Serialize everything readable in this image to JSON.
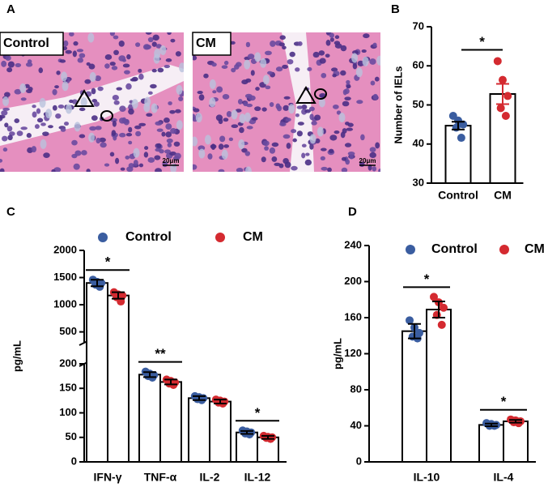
{
  "figure": {
    "panel_labels": [
      "A",
      "B",
      "C",
      "D"
    ],
    "image_labels": [
      "Control",
      "CM"
    ],
    "scale_bars": [
      "20μm",
      "20μm"
    ]
  },
  "chart_data": [
    {
      "type": "bar",
      "y_label": "Number of IELs",
      "categories": [
        "Control",
        "CM"
      ],
      "values": [
        44.7,
        52.8
      ],
      "errors": [
        1.0,
        2.6
      ],
      "colors": [
        "#3a5da0",
        "#d42a30"
      ],
      "error_colors": [
        "#000000",
        "#d42a30"
      ],
      "points": [
        [
          47.2,
          46.0,
          45.0,
          44.2,
          41.6
        ],
        [
          61.2,
          56.4,
          52.3,
          49.2,
          47.2
        ]
      ],
      "ylim": [
        30,
        70
      ],
      "yticks": [
        30,
        40,
        50,
        60,
        70
      ],
      "significance": [
        {
          "categories": [
            0,
            1
          ],
          "label": "*"
        }
      ]
    },
    {
      "type": "bar",
      "y_label": "pg/mL",
      "categories": [
        "IFN-γ",
        "TNF-α",
        "IL-2",
        "IL-12"
      ],
      "series": [
        {
          "name": "Control",
          "color": "#3a5da0",
          "values": [
            1400,
            178,
            130,
            60
          ],
          "errors": [
            60,
            5,
            4,
            3
          ],
          "points": [
            [
              1460,
              1420,
              1400,
              1370,
              1330
            ],
            [
              184,
              180,
              177,
              175,
              172
            ],
            [
              134,
              132,
              130,
              128,
              126
            ],
            [
              64,
              62,
              60,
              58,
              56
            ]
          ]
        },
        {
          "name": "CM",
          "color": "#d42a30",
          "values": [
            1170,
            163,
            123,
            50
          ],
          "errors": [
            60,
            5,
            4,
            3
          ],
          "points": [
            [
              1230,
              1190,
              1170,
              1140,
              1060
            ],
            [
              168,
              165,
              162,
              160,
              157
            ],
            [
              127,
              125,
              123,
              121,
              119
            ],
            [
              53,
              51,
              50,
              49,
              47
            ]
          ]
        }
      ],
      "y_segments": [
        {
          "ylim": [
            0,
            200
          ],
          "yticks": [
            0,
            50,
            100,
            150,
            200
          ]
        },
        {
          "ylim": [
            300,
            2000
          ],
          "yticks": [
            500,
            1000,
            1500,
            2000
          ]
        }
      ],
      "significance": [
        {
          "category": 0,
          "label": "*"
        },
        {
          "category": 1,
          "label": "**"
        },
        {
          "category": 3,
          "label": "*"
        }
      ]
    },
    {
      "type": "bar",
      "y_label": "pg/mL",
      "categories": [
        "IL-10",
        "IL-4"
      ],
      "series": [
        {
          "name": "Control",
          "color": "#3a5da0",
          "values": [
            145,
            41
          ],
          "errors": [
            8,
            1.5
          ],
          "points": [
            [
              157,
              149,
              143,
              139,
              137
            ],
            [
              43,
              42,
              41,
              40,
              40
            ]
          ]
        },
        {
          "name": "CM",
          "color": "#d42a30",
          "values": [
            169,
            45
          ],
          "errors": [
            9,
            1.5
          ],
          "points": [
            [
              183,
              177,
              171,
              163,
              152
            ],
            [
              47,
              46,
              45,
              44,
              43
            ]
          ]
        }
      ],
      "ylim": [
        0,
        240
      ],
      "yticks": [
        0,
        40,
        80,
        120,
        160,
        200,
        240
      ],
      "significance": [
        {
          "category": 0,
          "label": "*"
        },
        {
          "category": 1,
          "label": "*"
        }
      ]
    }
  ]
}
